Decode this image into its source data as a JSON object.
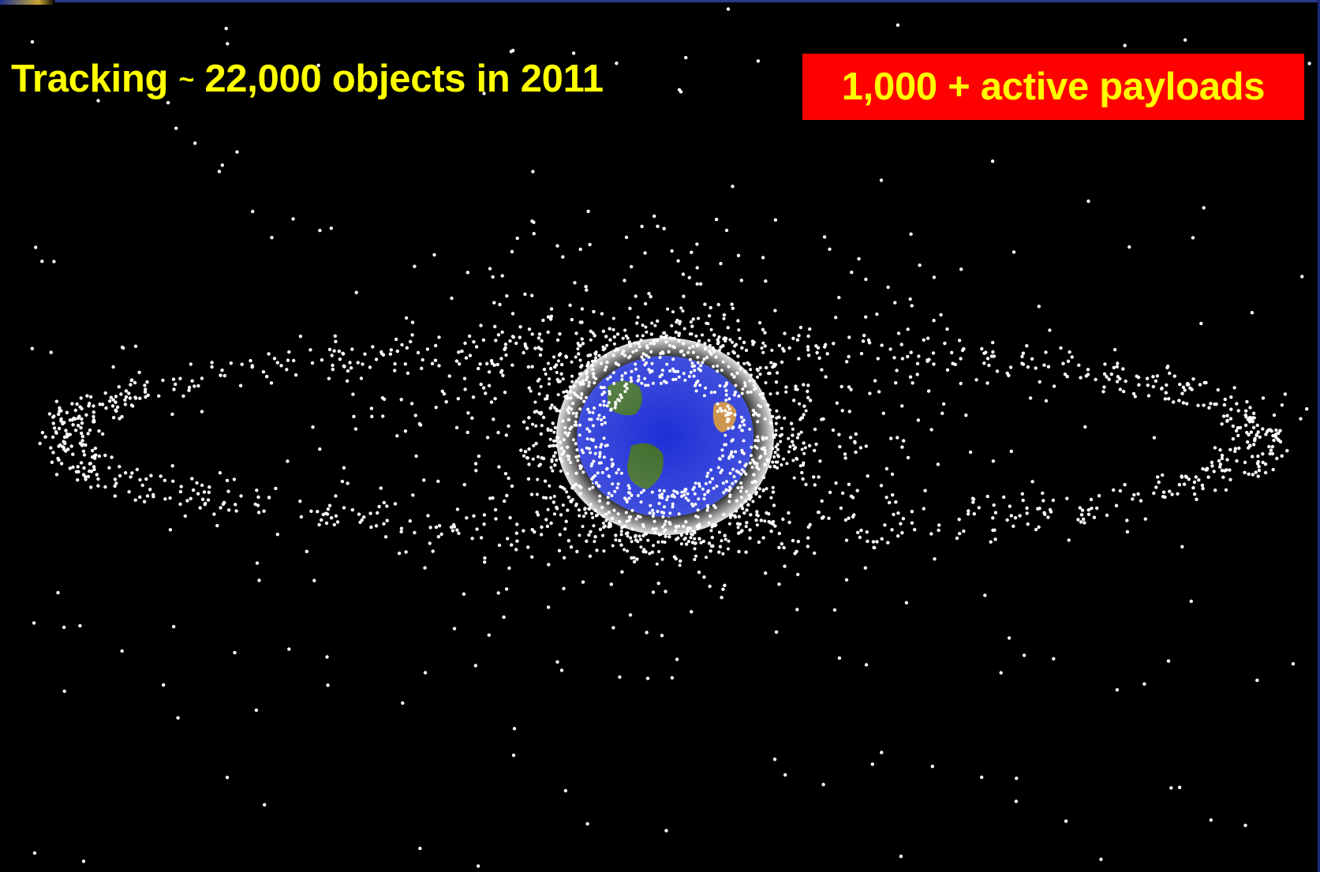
{
  "headline": {
    "part1": "Tracking ",
    "tilde": "~",
    "part2": " 22,000 objects in 2011"
  },
  "callout": {
    "text": "1,000 + active payloads"
  },
  "colors": {
    "background": "#000000",
    "headline_text": "#ffff00",
    "callout_background": "#ff0000",
    "callout_text": "#ffff00",
    "debris": "#ffffff",
    "ocean": "#1e2fd6",
    "land": "#3d6b2a",
    "desert": "#c9893a"
  }
}
